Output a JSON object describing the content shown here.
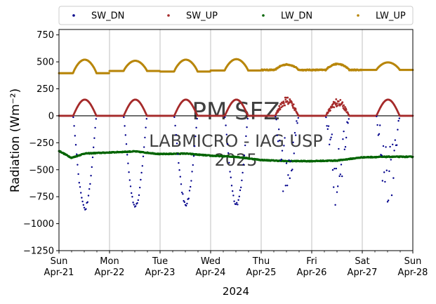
{
  "chart_data": {
    "type": "scatter",
    "xlabel": "2024",
    "ylabel": "Radiation (Wm⁻²)",
    "ylim": [
      -1250,
      800
    ],
    "yticks": [
      750,
      500,
      250,
      0,
      -250,
      -500,
      -750,
      -1000,
      -1250
    ],
    "xlim": [
      "2024-04-21",
      "2024-04-28"
    ],
    "xticks": [
      {
        "date": "2024-04-21",
        "day": "Sun",
        "date_label": "Apr-21"
      },
      {
        "date": "2024-04-22",
        "day": "Mon",
        "date_label": "Apr-22"
      },
      {
        "date": "2024-04-23",
        "day": "Tue",
        "date_label": "Apr-23"
      },
      {
        "date": "2024-04-24",
        "day": "Wed",
        "date_label": "Apr-24"
      },
      {
        "date": "2024-04-25",
        "day": "Thu",
        "date_label": "Apr-25"
      },
      {
        "date": "2024-04-26",
        "day": "Fri",
        "date_label": "Apr-26"
      },
      {
        "date": "2024-04-27",
        "day": "Sat",
        "date_label": "Apr-27"
      },
      {
        "date": "2024-04-28",
        "day": "Sun",
        "date_label": "Apr-28"
      }
    ],
    "grid": "vertical",
    "legend": {
      "placement": "top",
      "columns": 4
    },
    "zero_line": 0,
    "series": [
      {
        "name": "SW_DN",
        "color": "#00008b",
        "night_value": 0,
        "daily_peak": [
          -860,
          -840,
          -820,
          -820,
          -800,
          -880,
          -830
        ],
        "scatter_days": [
          4,
          5,
          6
        ]
      },
      {
        "name": "SW_UP",
        "color": "#a52a2a",
        "night_value": 0,
        "daily_peak": [
          150,
          150,
          150,
          150,
          180,
          160,
          150
        ],
        "scatter_days": [
          4,
          5
        ]
      },
      {
        "name": "LW_DN",
        "color": "#006400",
        "daily_points": [
          [
            "2024-04-21T00:00",
            -325
          ],
          [
            "2024-04-21T06:00",
            -390
          ],
          [
            "2024-04-21T12:00",
            -350
          ],
          [
            "2024-04-22T00:00",
            -340
          ],
          [
            "2024-04-22T12:00",
            -330
          ],
          [
            "2024-04-23T00:00",
            -355
          ],
          [
            "2024-04-23T12:00",
            -350
          ],
          [
            "2024-04-24T00:00",
            -370
          ],
          [
            "2024-04-24T12:00",
            -380
          ],
          [
            "2024-04-25T00:00",
            -410
          ],
          [
            "2024-04-25T12:00",
            -420
          ],
          [
            "2024-04-26T00:00",
            -420
          ],
          [
            "2024-04-26T12:00",
            -415
          ],
          [
            "2024-04-27T00:00",
            -385
          ],
          [
            "2024-04-27T12:00",
            -380
          ],
          [
            "2024-04-28T00:00",
            -380
          ]
        ]
      },
      {
        "name": "LW_UP",
        "color": "#b8860b",
        "night_value": 410,
        "daily_night": [
          395,
          415,
          410,
          420,
          425,
          425,
          425
        ],
        "daily_peak": [
          520,
          510,
          520,
          525,
          475,
          480,
          495
        ]
      }
    ],
    "watermark": {
      "lines": [
        "PM SFZ",
        "LABMICRO - IAG USP",
        "2025"
      ],
      "color": "#b4b4b4"
    }
  }
}
